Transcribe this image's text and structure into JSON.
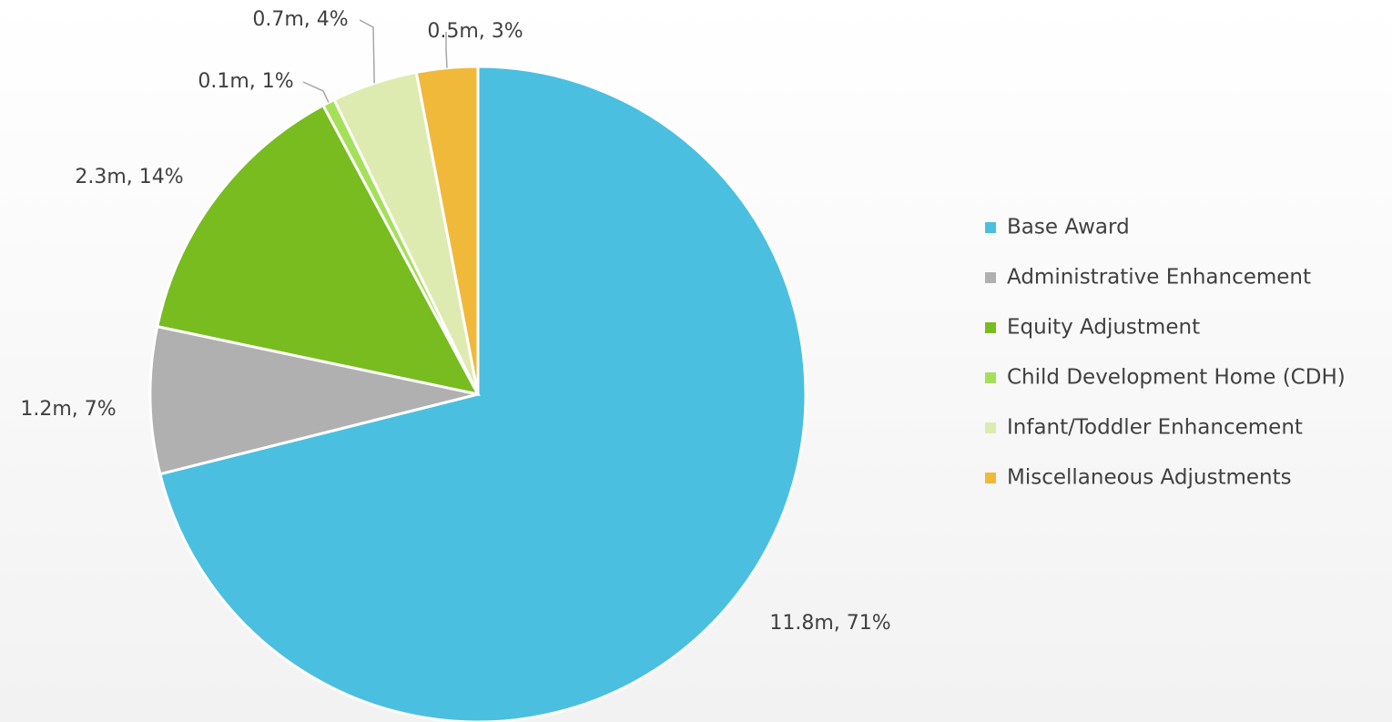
{
  "chart_data": {
    "type": "pie",
    "categories": [
      "Base Award",
      "Administrative Enhancement",
      "Equity Adjustment",
      "Child Development Home (CDH)",
      "Infant/Toddler Enhancement",
      "Miscellaneous Adjustments"
    ],
    "values": [
      11.8,
      1.2,
      2.3,
      0.1,
      0.7,
      0.5
    ],
    "value_labels": [
      "11.8m, 71%",
      "1.2m, 7%",
      "2.3m, 14%",
      "0.1m, 1%",
      "0.7m, 4%",
      "0.5m, 3%"
    ],
    "colors": [
      "#4bbfe0",
      "#b0b0b0",
      "#78bc20",
      "#a4e05a",
      "#deebb0",
      "#f0b93a"
    ],
    "legend": "right"
  }
}
